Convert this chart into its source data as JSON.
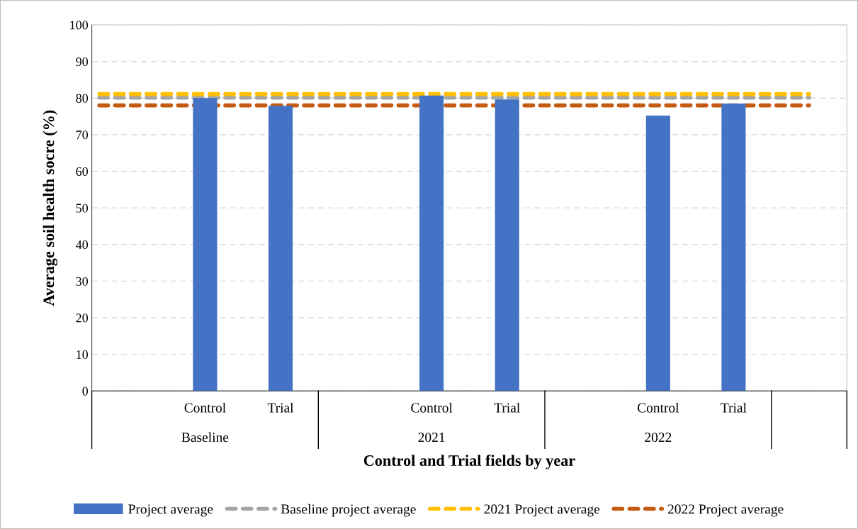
{
  "chart_data": {
    "type": "bar",
    "xlabel": "Control and Trial fields by year",
    "ylabel": "Average soil health socre (%)",
    "categories": [
      null,
      "Control",
      "Trial",
      null,
      "Control",
      "Trial",
      null,
      "Control",
      "Trial",
      null
    ],
    "series": [
      {
        "name": "Project average",
        "color": "#4472c4",
        "values": [
          null,
          80,
          77.9,
          null,
          80.7,
          79.6,
          null,
          75.2,
          78.5,
          null
        ]
      }
    ],
    "ylim": [
      0,
      100
    ],
    "yticks": [
      0,
      10,
      20,
      30,
      40,
      50,
      60,
      70,
      80,
      90,
      100
    ],
    "grid": "y",
    "legend": "bottom",
    "ref_lines": [
      {
        "axis": "y",
        "value": 80.1,
        "label": "Baseline project average",
        "color": "#a5a5a5",
        "line_style": "dashed"
      },
      {
        "axis": "y",
        "value": 81.1,
        "label": "2021 Project average",
        "color": "#ffc000",
        "line_style": "dashed"
      },
      {
        "axis": "y",
        "value": 78,
        "label": "2022 Project average",
        "color": "#c55a11",
        "line_style": "dashed"
      }
    ],
    "annotations": [
      "Baseline",
      "2021",
      "2022"
    ]
  }
}
